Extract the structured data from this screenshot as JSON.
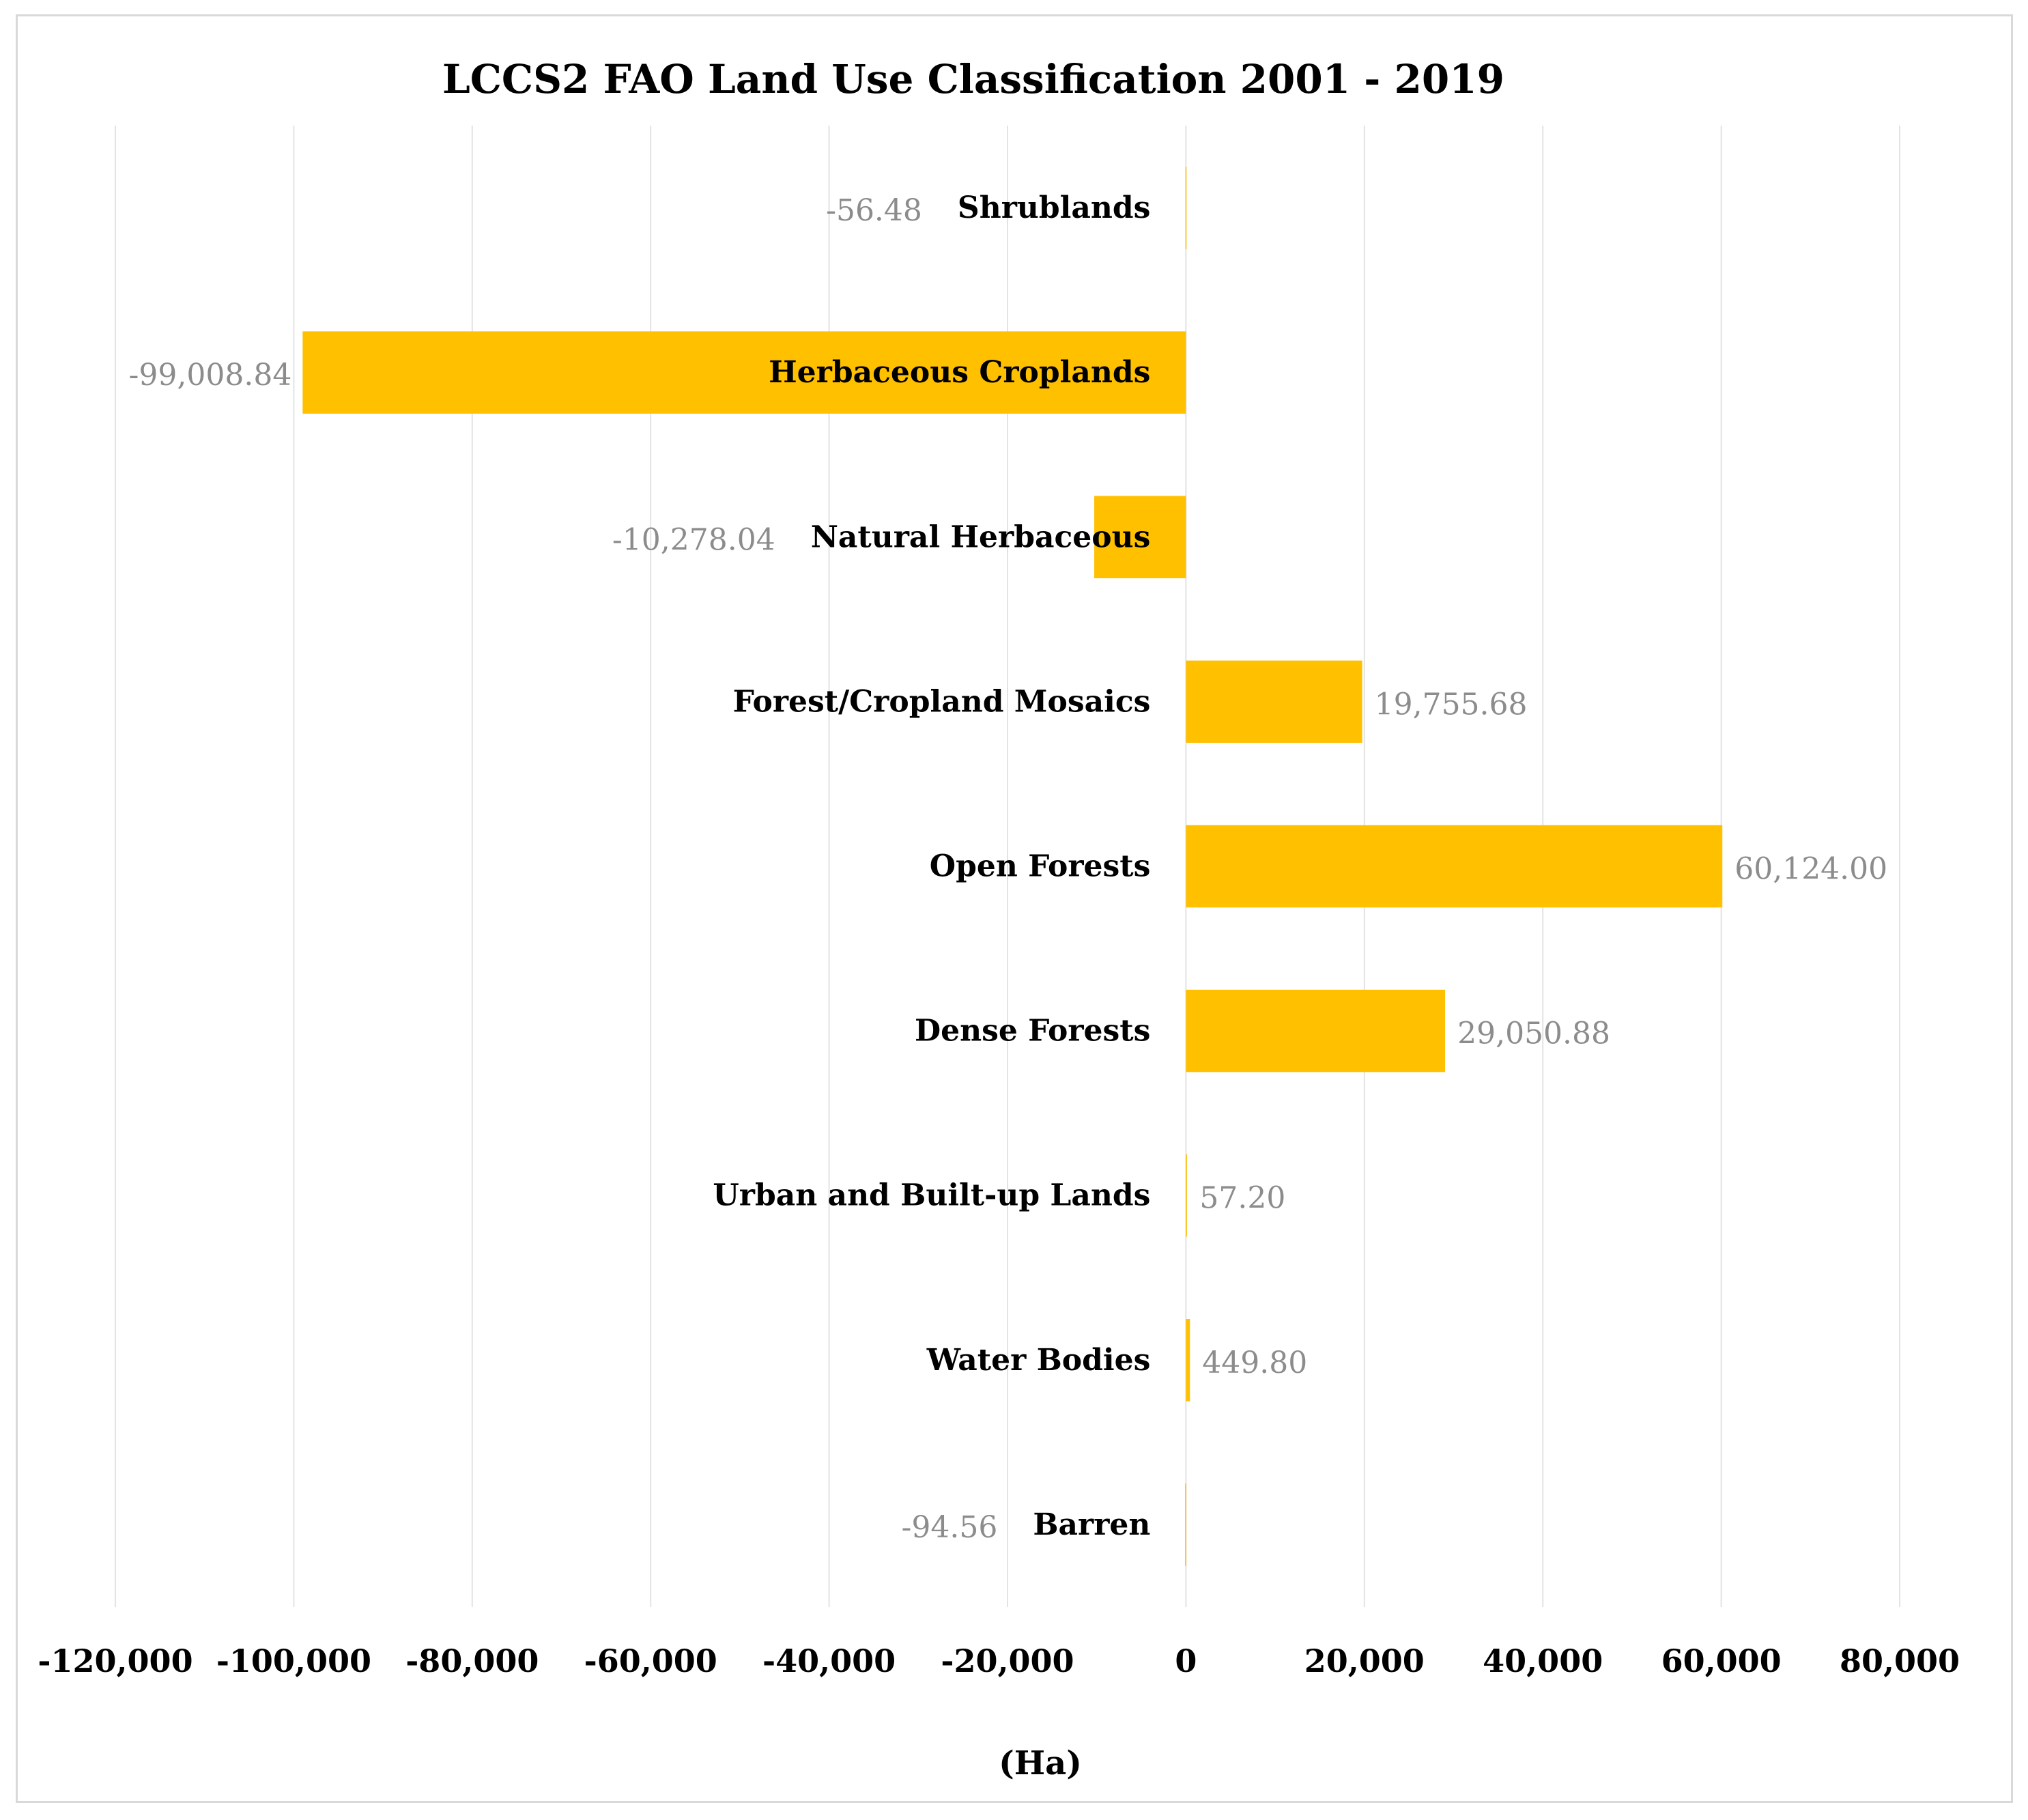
{
  "chart_data": {
    "type": "bar",
    "orientation": "horizontal",
    "title": "LCCS2 FAO Land Use Classification 2001 - 2019",
    "xlabel": "(Ha)",
    "ylabel": "",
    "xlim": [
      -120000,
      80000
    ],
    "x_ticks": [
      -120000,
      -100000,
      -80000,
      -60000,
      -40000,
      -20000,
      0,
      20000,
      40000,
      60000,
      80000
    ],
    "x_tick_labels": [
      "-120,000",
      "-100,000",
      "-80,000",
      "-60,000",
      "-40,000",
      "-20,000",
      "0",
      "20,000",
      "40,000",
      "60,000",
      "80,000"
    ],
    "grid": true,
    "bar_color": "#FFC000",
    "categories": [
      "Shrublands",
      "Herbaceous Croplands",
      "Natural Herbaceous",
      "Forest/Cropland Mosaics",
      "Open Forests",
      "Dense Forests",
      "Urban and Built-up Lands",
      "Water Bodies",
      "Barren"
    ],
    "values": [
      -56.48,
      -99008.84,
      -10278.04,
      19755.68,
      60124.0,
      29050.88,
      57.2,
      449.8,
      -94.56
    ],
    "value_labels": [
      "-56.48",
      "-99,008.84",
      "-10,278.04",
      "19,755.68",
      "60,124.00",
      "29,050.88",
      "57.20",
      "449.80",
      "-94.56"
    ]
  }
}
